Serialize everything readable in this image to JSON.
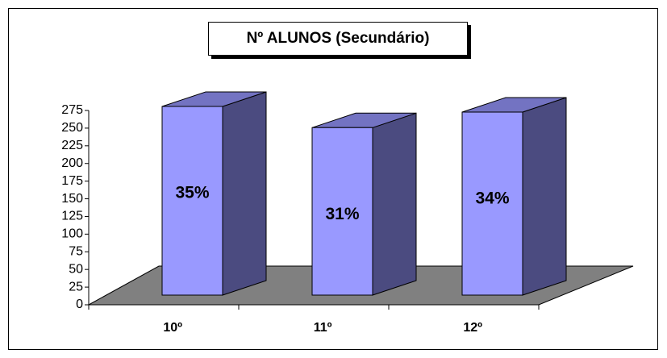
{
  "chart_data": {
    "type": "bar3d",
    "title": "Nº ALUNOS (Secundário)",
    "categories": [
      "10º",
      "11º",
      "12º"
    ],
    "values": [
      267,
      237,
      259
    ],
    "value_labels": [
      "35%",
      "31%",
      "34%"
    ],
    "color": "#9999ff",
    "ylim": [
      0,
      275
    ],
    "yticks": [
      0,
      25,
      50,
      75,
      100,
      125,
      150,
      175,
      200,
      225,
      250,
      275
    ]
  }
}
